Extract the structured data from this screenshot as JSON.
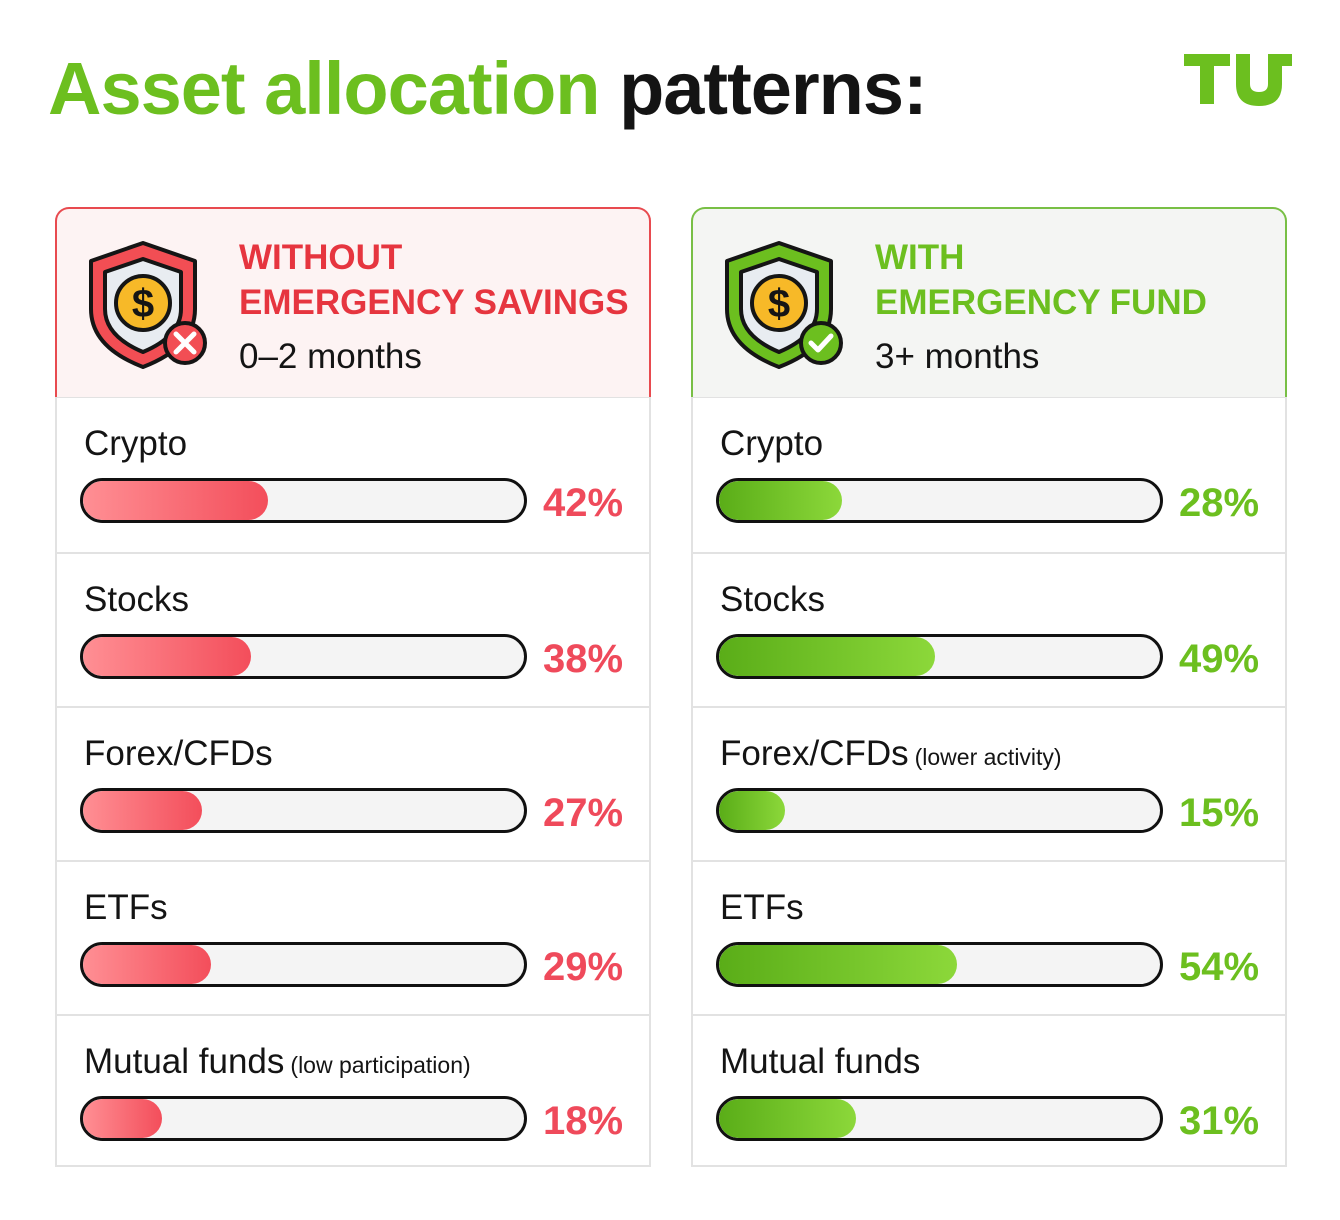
{
  "title": {
    "part1": "Asset allocation",
    "part2": "patterns:"
  },
  "logo": {
    "text": "TU",
    "color": "#6cbf1f"
  },
  "colors": {
    "accent_green": "#6cbf1f",
    "accent_red": "#e6353f",
    "text": "#141414"
  },
  "chart_data": [
    {
      "type": "bar",
      "orientation": "horizontal",
      "header": {
        "line1": "WITHOUT",
        "line2": "EMERGENCY SAVINGS",
        "subtitle": "0–2 months",
        "icon": "shield-dollar-x-icon"
      },
      "categories": [
        "Crypto",
        "Stocks",
        "Forex/CFDs",
        "ETFs",
        "Mutual funds"
      ],
      "notes": [
        "",
        "",
        "",
        "",
        "(low participation)"
      ],
      "values": [
        42,
        38,
        27,
        29,
        18
      ],
      "labels": [
        "42%",
        "38%",
        "27%",
        "29%",
        "18%"
      ],
      "unit": "%",
      "xlim": [
        0,
        100
      ],
      "color": "#ef4a5b"
    },
    {
      "type": "bar",
      "orientation": "horizontal",
      "header": {
        "line1": "WITH",
        "line2": "EMERGENCY FUND",
        "subtitle": "3+ months",
        "icon": "shield-dollar-check-icon"
      },
      "categories": [
        "Crypto",
        "Stocks",
        "Forex/CFDs",
        "ETFs",
        "Mutual funds"
      ],
      "notes": [
        "",
        "",
        "(lower activity)",
        "",
        ""
      ],
      "values": [
        28,
        49,
        15,
        54,
        31
      ],
      "labels": [
        "28%",
        "49%",
        "15%",
        "54%",
        "31%"
      ],
      "unit": "%",
      "xlim": [
        0,
        100
      ],
      "color": "#6cbf1f"
    }
  ]
}
